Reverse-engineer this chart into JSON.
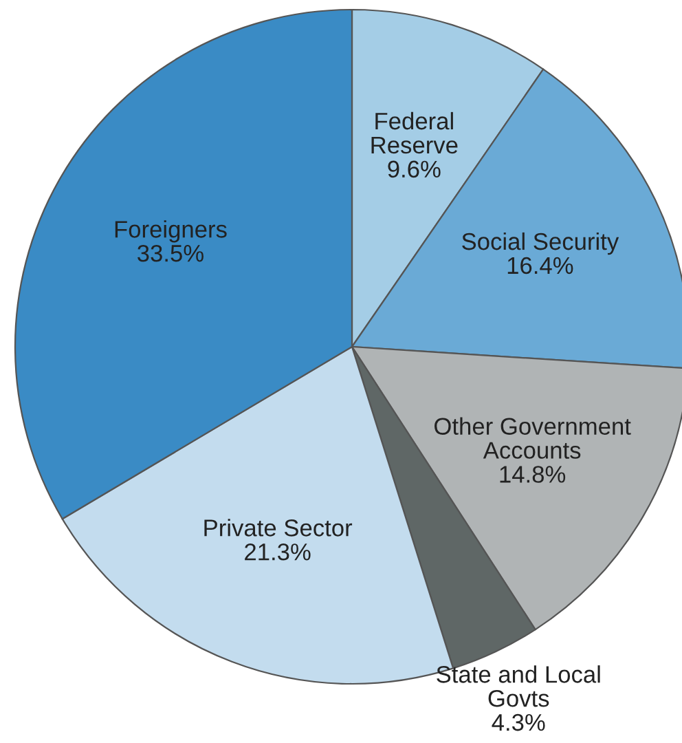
{
  "chart_data": {
    "type": "pie",
    "categories": [
      "Federal\nReserve",
      "Social Security",
      "Other Government\nAccounts",
      "State and Local\nGovts",
      "Private Sector",
      "Foreigners"
    ],
    "values": [
      9.6,
      16.4,
      14.8,
      4.3,
      21.3,
      33.5
    ],
    "colors": [
      "#a4cde6",
      "#6aaad6",
      "#b0b4b5",
      "#5f6766",
      "#c3dcee",
      "#3a8bc5"
    ],
    "value_labels": [
      "9.6%",
      "16.4%",
      "14.8%",
      "4.3%",
      "21.3%",
      "33.5%"
    ]
  }
}
